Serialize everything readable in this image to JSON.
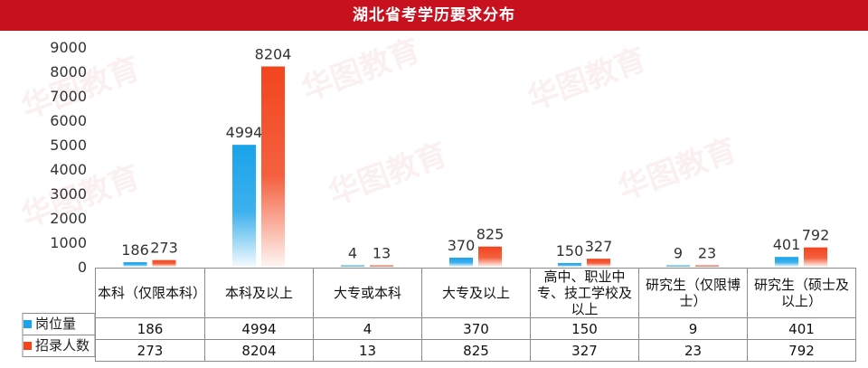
{
  "header": {
    "title": "湖北省考学历要求分布"
  },
  "watermark": {
    "text": "华图教育",
    "sub": "HUATU.COM"
  },
  "colors": {
    "series1": "#1aa3ea",
    "series2": "#f2451e",
    "title_bg": "#c7111e"
  },
  "chart_data": {
    "type": "bar",
    "categories": [
      "本科（仅限本科）",
      "本科及以上",
      "大专或本科",
      "大专及以上",
      "高中、职业中专、技工学校及以上",
      "研究生（仅限博士）",
      "研究生（硕士及以上）"
    ],
    "series": [
      {
        "name": "岗位量",
        "values": [
          186,
          4994,
          4,
          370,
          150,
          9,
          401
        ]
      },
      {
        "name": "招录人数",
        "values": [
          273,
          8204,
          13,
          825,
          327,
          23,
          792
        ]
      }
    ],
    "ylim": [
      0,
      9000
    ],
    "yticks": [
      0,
      1000,
      2000,
      3000,
      4000,
      5000,
      6000,
      7000,
      8000,
      9000
    ],
    "title": "湖北省考学历要求分布",
    "xlabel": "",
    "ylabel": "",
    "legend": "data-table"
  },
  "table": {
    "rows": [
      {
        "name": "岗位量",
        "values": [
          "186",
          "4994",
          "4",
          "370",
          "150",
          "9",
          "401"
        ]
      },
      {
        "name": "招录人数",
        "values": [
          "273",
          "8204",
          "13",
          "825",
          "327",
          "23",
          "792"
        ]
      }
    ]
  }
}
